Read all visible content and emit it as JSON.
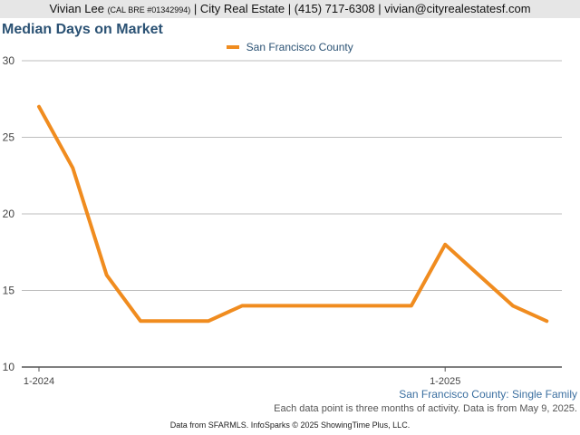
{
  "header": {
    "name": "Vivian Lee",
    "license": "(CAL BRE #01342994)",
    "rest": "| City Real Estate | (415) 717-6308 | vivian@cityrealestatesf.com"
  },
  "chart_data": {
    "type": "line",
    "title": "Median Days on Market",
    "xlabel": "",
    "ylabel": "",
    "ylim": [
      10,
      30
    ],
    "yticks": [
      10,
      15,
      20,
      25,
      30
    ],
    "grid": true,
    "legend_position": "top-center",
    "x_tick_labels": [
      {
        "index": 0,
        "label": "1-2024"
      },
      {
        "index": 12,
        "label": "1-2025"
      }
    ],
    "x": [
      "1-2024",
      "2-2024",
      "3-2024",
      "4-2024",
      "5-2024",
      "6-2024",
      "7-2024",
      "8-2024",
      "9-2024",
      "10-2024",
      "11-2024",
      "12-2024",
      "1-2025",
      "2-2025",
      "3-2025",
      "4-2025"
    ],
    "series": [
      {
        "name": "San Francisco County",
        "color": "#f08c1f",
        "values": [
          27,
          23,
          16,
          13,
          13,
          13,
          14,
          14,
          14,
          14,
          14,
          14,
          18,
          16,
          14,
          13
        ]
      }
    ]
  },
  "subtitle": "San Francisco County: Single Family",
  "note": "Each data point is three months of activity. Data is from May 9, 2025.",
  "footer": "Data from SFARMLS. InfoSparks © 2025 ShowingTime Plus, LLC."
}
